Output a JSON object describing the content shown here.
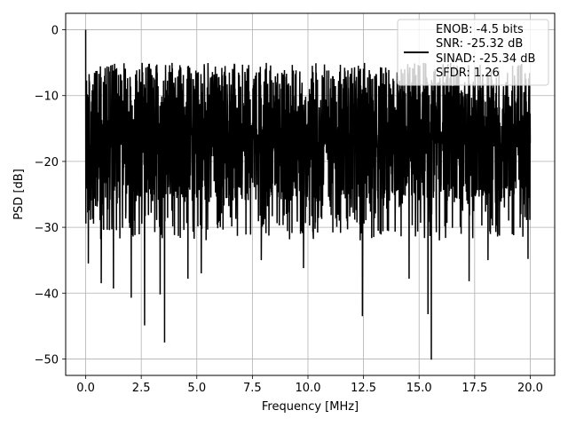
{
  "chart_data": {
    "type": "line",
    "title": "",
    "xlabel": "Frequency [MHz]",
    "ylabel": "PSD [dB]",
    "xlim": [
      -0.9,
      21.1
    ],
    "ylim": [
      -52.5,
      2.5
    ],
    "xticks": [
      0.0,
      2.5,
      5.0,
      7.5,
      10.0,
      12.5,
      15.0,
      17.5,
      20.0
    ],
    "xtick_labels": [
      "0.0",
      "2.5",
      "5.0",
      "7.5",
      "10.0",
      "12.5",
      "15.0",
      "17.5",
      "20.0"
    ],
    "yticks": [
      0,
      -10,
      -20,
      -30,
      -40,
      -50
    ],
    "ytick_labels": [
      "0",
      "−10",
      "−20",
      "−30",
      "−40",
      "−50"
    ],
    "grid": true,
    "legend_position": "top-right",
    "series": [
      {
        "name": "ENOB: -4.5 bits\nSNR: -25.32 dB\nSINAD: -25.34 dB\nSFDR: 1.26",
        "color": "#000000",
        "x_range": [
          0.0,
          20.0
        ],
        "typical_range": [
          -30,
          -5
        ],
        "noise_floor_mean": -15.5,
        "peak": {
          "x": 0.0,
          "y": 0.0
        },
        "notable_dips": [
          {
            "x": 0.12,
            "y": -35.5
          },
          {
            "x": 0.7,
            "y": -38.5
          },
          {
            "x": 1.25,
            "y": -39.3
          },
          {
            "x": 2.05,
            "y": -40.7
          },
          {
            "x": 2.65,
            "y": -44.9
          },
          {
            "x": 3.35,
            "y": -40.2
          },
          {
            "x": 3.55,
            "y": -47.5
          },
          {
            "x": 4.6,
            "y": -37.8
          },
          {
            "x": 5.2,
            "y": -37.0
          },
          {
            "x": 7.9,
            "y": -35.0
          },
          {
            "x": 9.8,
            "y": -36.2
          },
          {
            "x": 12.45,
            "y": -43.5
          },
          {
            "x": 14.55,
            "y": -37.8
          },
          {
            "x": 15.4,
            "y": -43.2
          },
          {
            "x": 15.55,
            "y": -50.1
          },
          {
            "x": 17.25,
            "y": -38.2
          },
          {
            "x": 18.1,
            "y": -35.0
          },
          {
            "x": 19.9,
            "y": -34.8
          }
        ]
      }
    ],
    "legend": {
      "lines": [
        "ENOB: -4.5 bits",
        "SNR: -25.32 dB",
        "SINAD: -25.34 dB",
        "SFDR: 1.26"
      ]
    }
  }
}
